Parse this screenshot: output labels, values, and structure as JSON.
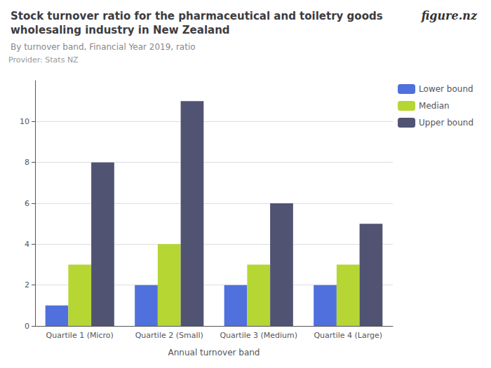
{
  "chart_data": {
    "type": "bar",
    "title": "Stock turnover ratio for the pharmaceutical and toiletry goods\nwholesaling industry in New Zealand",
    "subtitle": "By turnover band, Financial Year 2019, ratio",
    "annotations": [
      "Provider: Stats NZ",
      "figure.nz"
    ],
    "xlabel": "Annual turnover band",
    "categories": [
      "Quartile 1 (Micro)",
      "Quartile 2 (Small)",
      "Quartile 3 (Medium)",
      "Quartile 4 (Large)"
    ],
    "series": [
      {
        "name": "Lower bound",
        "values": [
          1,
          2,
          2,
          2
        ]
      },
      {
        "name": "Median",
        "values": [
          3,
          4,
          3,
          3
        ]
      },
      {
        "name": "Upper bound",
        "values": [
          8,
          11,
          6,
          5
        ]
      }
    ],
    "ylim": [
      0,
      12
    ],
    "yticks": [
      0,
      2,
      4,
      6,
      8,
      10
    ],
    "grid": true,
    "legend": "right"
  }
}
